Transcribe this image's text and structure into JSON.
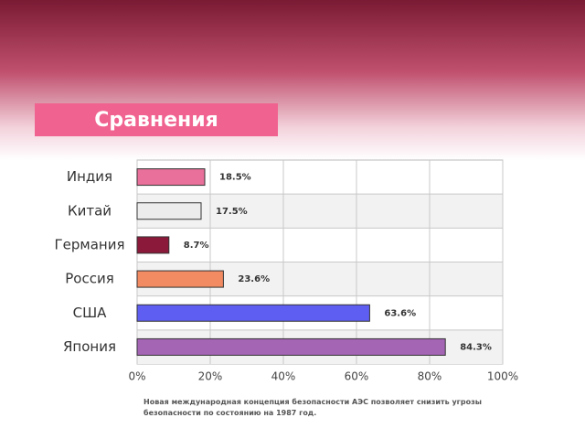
{
  "chart_data": {
    "type": "hbar",
    "title": "Сравнения",
    "categories": [
      "Индия",
      "Китай",
      "Германия",
      "Россия",
      "США",
      "Япония"
    ],
    "values": [
      18.5,
      17.5,
      8.7,
      23.6,
      63.6,
      84.3
    ],
    "value_labels": [
      "18.5%",
      "17.5%",
      "8.7%",
      "23.6%",
      "63.6%",
      "84.3%"
    ],
    "colors": [
      "#e8709a",
      "#ececec",
      "#8b1a3a",
      "#f28a62",
      "#5e5ef2",
      "#a565b5"
    ],
    "xlim": [
      0,
      100
    ],
    "xticks": [
      {
        "value": 0,
        "label": "0%"
      },
      {
        "value": 20,
        "label": "20%"
      },
      {
        "value": 40,
        "label": "40%"
      },
      {
        "value": 60,
        "label": "60%"
      },
      {
        "value": 80,
        "label": "80%"
      },
      {
        "value": 100,
        "label": "100%"
      }
    ],
    "grid": true,
    "note": "Новая международная концепция безопасности АЭС позволяет снизить угрозы безопасности по состоянию на 1987 год."
  }
}
